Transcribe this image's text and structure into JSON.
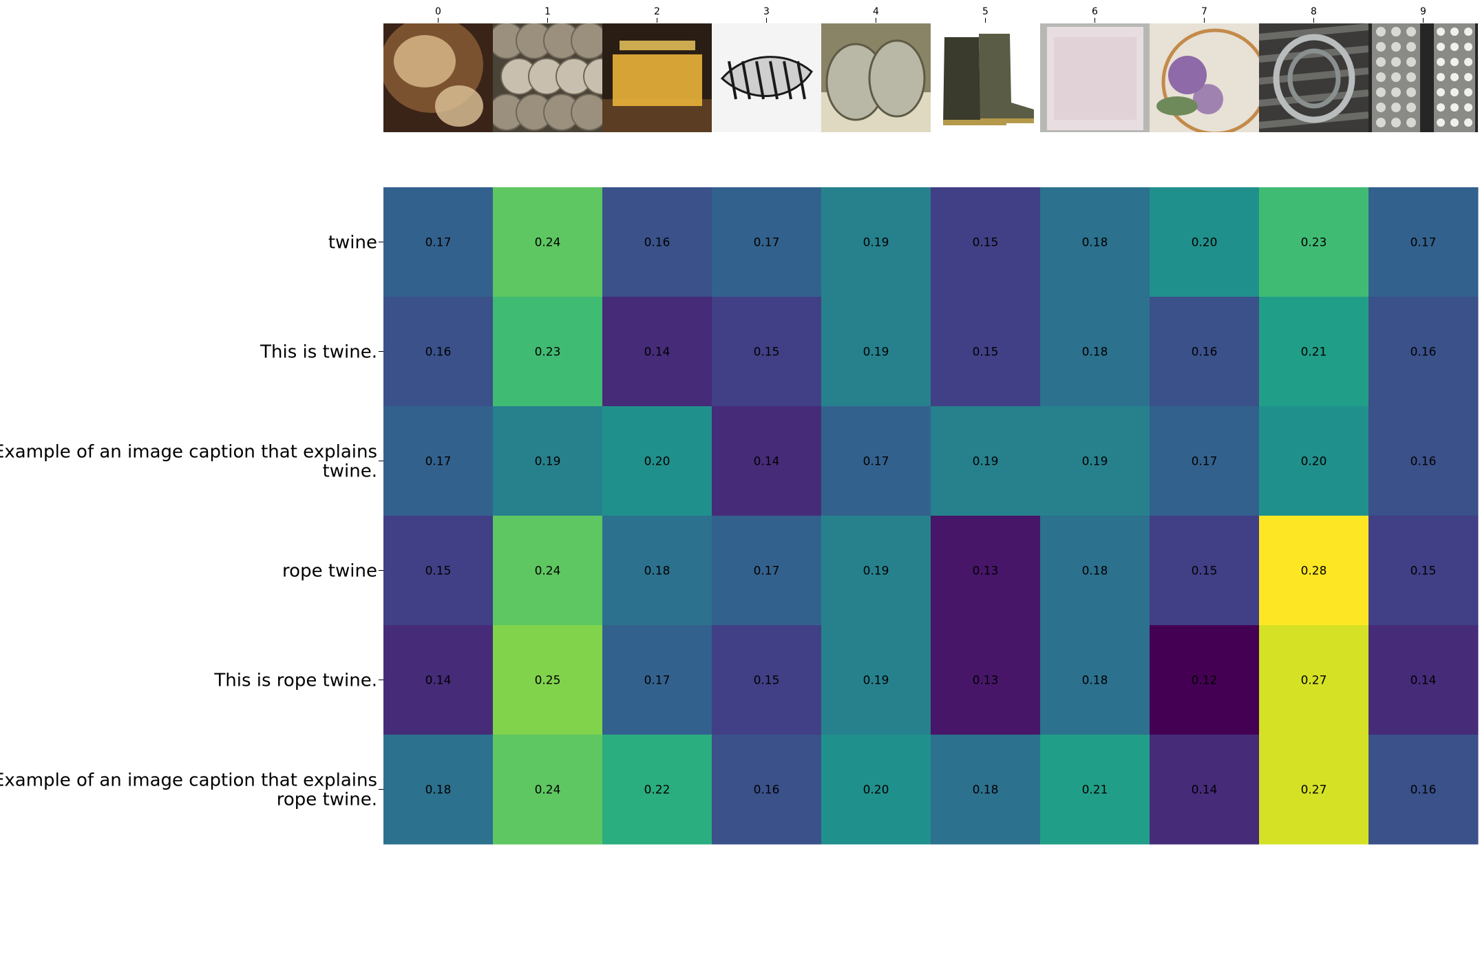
{
  "chart_data": {
    "type": "heatmap",
    "title": "",
    "xlabel": "",
    "ylabel": "",
    "x_tick_labels": [
      "0",
      "1",
      "2",
      "3",
      "4",
      "5",
      "6",
      "7",
      "8",
      "9"
    ],
    "images": [
      {
        "index": 0,
        "icon": "hair-photo-icon",
        "colors": [
          "#3a2418",
          "#7a5230",
          "#caa77a",
          "#e0c49a"
        ]
      },
      {
        "index": 1,
        "icon": "twine-balls-photo-icon",
        "colors": [
          "#4a4338",
          "#9a907d",
          "#c8bfae",
          "#6e6556"
        ]
      },
      {
        "index": 2,
        "icon": "rope-movie-poster-icon",
        "colors": [
          "#2a1d14",
          "#5a3d22",
          "#e8b23a",
          "#f5d060"
        ]
      },
      {
        "index": 3,
        "icon": "rope-drawing-icon",
        "colors": [
          "#f4f4f4",
          "#1a1a1a",
          "#777777",
          "#cfcfcf"
        ]
      },
      {
        "index": 4,
        "icon": "sneakers-photo-icon",
        "colors": [
          "#8a8466",
          "#b9b7a6",
          "#ded9c0",
          "#5e5a44"
        ]
      },
      {
        "index": 5,
        "icon": "rubber-boots-photo-icon",
        "colors": [
          "#ffffff",
          "#3a3b2c",
          "#5b5c45",
          "#b49a4a"
        ]
      },
      {
        "index": 6,
        "icon": "pink-washcloth-photo-icon",
        "colors": [
          "#b7b8b4",
          "#e8dde0",
          "#d8c8cc",
          "#9a9a96"
        ]
      },
      {
        "index": 7,
        "icon": "embroidery-hoop-photo-icon",
        "colors": [
          "#e7e1d6",
          "#8e6aa8",
          "#c48a4a",
          "#6f8a5a"
        ]
      },
      {
        "index": 8,
        "icon": "coiled-rope-photo-icon",
        "colors": [
          "#3b3a38",
          "#b8bcbc",
          "#6a6a66",
          "#8a8f8f"
        ]
      },
      {
        "index": 9,
        "icon": "lace-photo-icon",
        "colors": [
          "#262626",
          "#d8d8d4",
          "#8a8a86",
          "#f0f0ec"
        ]
      }
    ],
    "rows": [
      {
        "label": "twine",
        "values": [
          0.17,
          0.24,
          0.16,
          0.17,
          0.19,
          0.15,
          0.18,
          0.2,
          0.23,
          0.17
        ]
      },
      {
        "label": "This is twine.",
        "values": [
          0.16,
          0.23,
          0.14,
          0.15,
          0.19,
          0.15,
          0.18,
          0.16,
          0.21,
          0.16
        ]
      },
      {
        "label": "Example of an image caption that explains twine.",
        "label_lines": [
          "Example of an image caption that explains",
          "twine."
        ],
        "values": [
          0.17,
          0.19,
          0.2,
          0.14,
          0.17,
          0.19,
          0.19,
          0.17,
          0.2,
          0.16
        ]
      },
      {
        "label": "rope twine",
        "values": [
          0.15,
          0.24,
          0.18,
          0.17,
          0.19,
          0.13,
          0.18,
          0.15,
          0.28,
          0.15
        ]
      },
      {
        "label": "This is rope twine.",
        "values": [
          0.14,
          0.25,
          0.17,
          0.15,
          0.19,
          0.13,
          0.18,
          0.12,
          0.27,
          0.14
        ]
      },
      {
        "label": "Example of an image caption that explains rope twine.",
        "label_lines": [
          "Example of an image caption that explains",
          "rope twine."
        ],
        "values": [
          0.18,
          0.24,
          0.22,
          0.16,
          0.2,
          0.18,
          0.21,
          0.14,
          0.27,
          0.16
        ]
      }
    ],
    "value_format_decimals": 2,
    "colormap": "viridis",
    "color_range": [
      0.12,
      0.28
    ],
    "colorbar": false,
    "grid": false,
    "legend": "none"
  }
}
